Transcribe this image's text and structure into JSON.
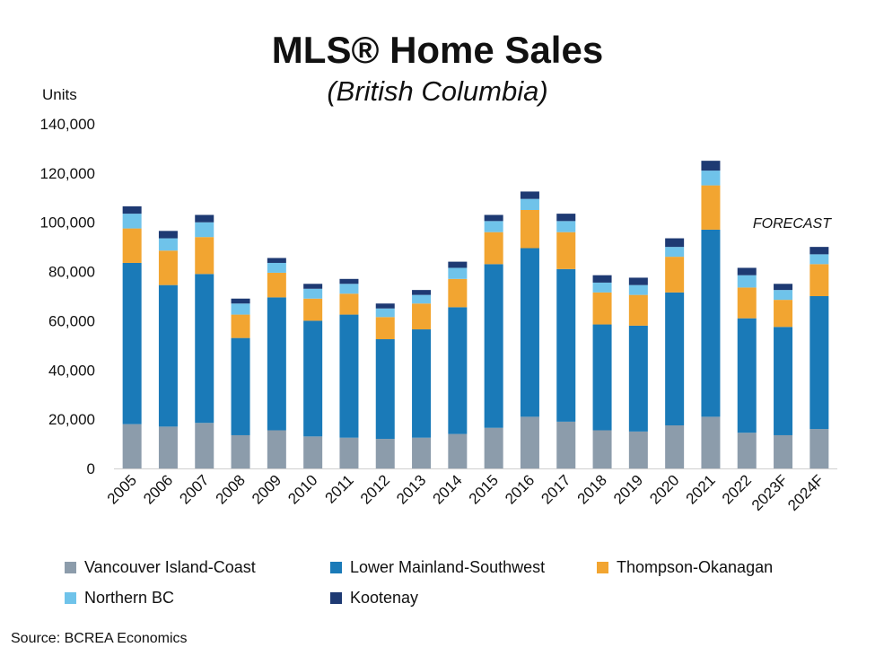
{
  "chart_data": {
    "type": "bar",
    "stacked": true,
    "title": "MLS® Home Sales",
    "subtitle": "(British Columbia)",
    "ylabel": "Units",
    "xlabel": "",
    "ylim": [
      0,
      140000
    ],
    "yticks": [
      0,
      20000,
      40000,
      60000,
      80000,
      100000,
      120000,
      140000
    ],
    "ytick_labels": [
      "0",
      "20,000",
      "40,000",
      "60,000",
      "80,000",
      "100,000",
      "120,000",
      "140,000"
    ],
    "annotation": "FORECAST",
    "categories": [
      "2005",
      "2006",
      "2007",
      "2008",
      "2009",
      "2010",
      "2011",
      "2012",
      "2013",
      "2014",
      "2015",
      "2016",
      "2017",
      "2018",
      "2019",
      "2020",
      "2021",
      "2022",
      "2023F",
      "2024F"
    ],
    "series": [
      {
        "name": "Vancouver Island-Coast",
        "color": "#8c9cab",
        "values": [
          18000,
          17000,
          18500,
          13500,
          15500,
          13000,
          12500,
          12000,
          12500,
          14000,
          16500,
          21000,
          19000,
          15500,
          15000,
          17500,
          21000,
          14500,
          13500,
          16000
        ]
      },
      {
        "name": "Lower Mainland-Southwest",
        "color": "#1a7ab8",
        "values": [
          65500,
          57500,
          60500,
          39500,
          54000,
          47000,
          50000,
          40500,
          44000,
          51500,
          66500,
          68500,
          62000,
          43000,
          43000,
          54000,
          76000,
          46500,
          44000,
          54000
        ]
      },
      {
        "name": "Thompson-Okanagan",
        "color": "#f2a531",
        "values": [
          14000,
          14000,
          15000,
          9500,
          10000,
          9000,
          8500,
          9000,
          10500,
          11500,
          13000,
          15500,
          15000,
          13000,
          12500,
          14500,
          18000,
          12500,
          11000,
          13000
        ]
      },
      {
        "name": "Northern BC",
        "color": "#6fc3ea",
        "values": [
          6000,
          5000,
          6000,
          4500,
          4000,
          4000,
          4000,
          3500,
          3500,
          4500,
          4500,
          4500,
          4500,
          4000,
          4000,
          4000,
          6000,
          5000,
          4000,
          4000
        ]
      },
      {
        "name": "Kootenay",
        "color": "#1e3a73",
        "values": [
          3000,
          3000,
          3000,
          2000,
          2000,
          2000,
          2000,
          2000,
          2000,
          2500,
          2500,
          3000,
          3000,
          3000,
          3000,
          3500,
          4000,
          3000,
          2500,
          3000
        ]
      }
    ],
    "grid": false,
    "legend_position": "bottom"
  },
  "source": "Source: BCREA Economics"
}
